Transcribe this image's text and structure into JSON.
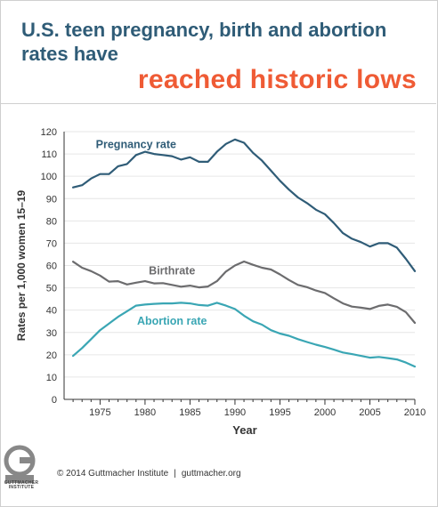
{
  "title": {
    "line1": "U.S. teen pregnancy, birth and abortion rates have",
    "line2": "reached historic lows"
  },
  "footer": {
    "copyright": "© 2014 Guttmacher Institute",
    "url": "guttmacher.org"
  },
  "logo": {
    "icon": "guttmacher-logo-icon",
    "text": "GUTTMACHER INSTITUTE"
  },
  "colors": {
    "title": "#2f5c77",
    "accent": "#ef5b35",
    "pregnancy": "#2f5c77",
    "birth": "#6c6c6e",
    "abortion": "#3aa6b4",
    "grid": "#e6e6e6"
  },
  "chart_data": {
    "type": "line",
    "xlabel": "Year",
    "ylabel": "Rates per 1,000 women 15–19",
    "xlim": [
      1971,
      2010
    ],
    "ylim": [
      0,
      120
    ],
    "xticks": [
      "1975",
      "1980",
      "1985",
      "1990",
      "1995",
      "2000",
      "2005",
      "2010"
    ],
    "yticks": [
      "0",
      "10",
      "20",
      "30",
      "40",
      "50",
      "60",
      "70",
      "80",
      "90",
      "100",
      "110",
      "120"
    ],
    "grid": true,
    "x": [
      1972,
      1973,
      1974,
      1975,
      1976,
      1977,
      1978,
      1979,
      1980,
      1981,
      1982,
      1983,
      1984,
      1985,
      1986,
      1987,
      1988,
      1989,
      1990,
      1991,
      1992,
      1993,
      1994,
      1995,
      1996,
      1997,
      1998,
      1999,
      2000,
      2001,
      2002,
      2003,
      2004,
      2005,
      2006,
      2007,
      2008,
      2009,
      2010
    ],
    "series": [
      {
        "name": "Pregnancy rate",
        "color": "#2f5c77",
        "values": [
          95,
          96,
          99,
          101,
          101,
          104.5,
          105.5,
          109.5,
          111,
          110,
          109.5,
          109,
          107.5,
          108.5,
          106.5,
          106.5,
          111,
          114.5,
          116.5,
          115,
          110.5,
          107,
          102.5,
          98,
          94,
          90.5,
          88,
          85,
          83,
          79,
          74.5,
          72,
          70.5,
          68.5,
          70,
          70,
          68,
          63,
          57.5
        ]
      },
      {
        "name": "Birthrate",
        "color": "#6c6c6e",
        "values": [
          61.7,
          59,
          57.5,
          55.5,
          52.8,
          53,
          51.5,
          52.3,
          53,
          52,
          52.1,
          51.3,
          50.5,
          51,
          50.2,
          50.6,
          53,
          57.3,
          60,
          61.8,
          60.3,
          59,
          58.2,
          56,
          53.5,
          51.3,
          50.3,
          48.8,
          47.7,
          45.3,
          43,
          41.6,
          41.1,
          40.5,
          41.9,
          42.5,
          41.5,
          39.1,
          34.3
        ]
      },
      {
        "name": "Abortion rate",
        "color": "#3aa6b4",
        "values": [
          19.5,
          23,
          27,
          31,
          34,
          37,
          39.5,
          42,
          42.5,
          42.8,
          43,
          43,
          43.3,
          43,
          42.3,
          42,
          43.3,
          42,
          40.5,
          37.5,
          35,
          33.5,
          31,
          29.5,
          28.5,
          27,
          25.7,
          24.5,
          23.5,
          22.3,
          21,
          20.3,
          19.5,
          18.7,
          19,
          18.5,
          17.9,
          16.5,
          14.7
        ]
      }
    ],
    "annotations": [
      {
        "text": "Pregnancy rate",
        "series": 0
      },
      {
        "text": "Birthrate",
        "series": 1
      },
      {
        "text": "Abortion rate",
        "series": 2
      }
    ]
  }
}
